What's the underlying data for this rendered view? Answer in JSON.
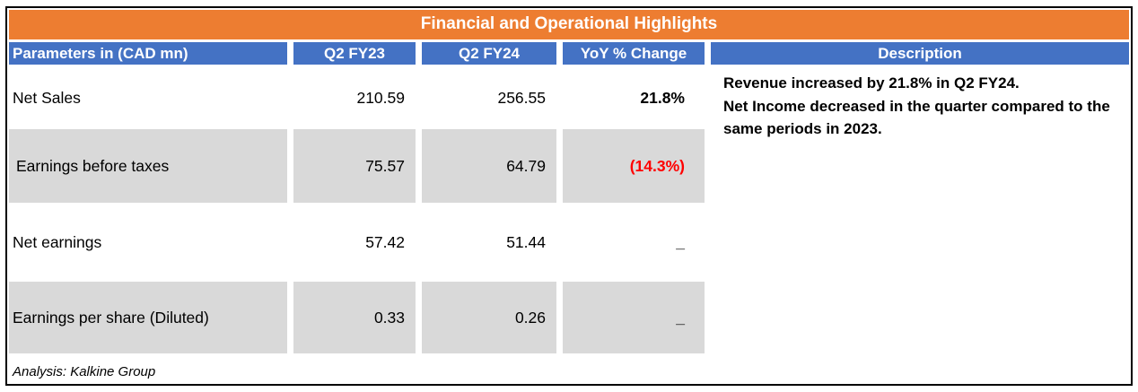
{
  "title": "Financial and Operational Highlights",
  "columns": {
    "parameters": "Parameters in (CAD mn)",
    "q2fy23": "Q2 FY23",
    "q2fy24": "Q2 FY24",
    "yoy": "YoY % Change",
    "description": "Description"
  },
  "rows": [
    {
      "param": "Net Sales",
      "q2fy23": "210.59",
      "q2fy24": "256.55",
      "yoy": "21.8%"
    },
    {
      "param": "Earnings before taxes",
      "q2fy23": "75.57",
      "q2fy24": "64.79",
      "yoy": "(14.3%)"
    },
    {
      "param": "Net earnings",
      "q2fy23": "57.42",
      "q2fy24": "51.44",
      "yoy": "_"
    },
    {
      "param": "Earnings per share (Diluted)",
      "q2fy23": "0.33",
      "q2fy24": "0.26",
      "yoy": "_"
    }
  ],
  "description": {
    "line1": "Revenue increased  by 21.8% in Q2 FY24.",
    "line2": "Net Income decreased in the quarter  compared to the same periods in 2023."
  },
  "footer": "Analysis: Kalkine Group",
  "colors": {
    "title_bg": "#ED7D31",
    "header_bg": "#4472C4",
    "shaded_row": "#D9D9D9",
    "negative_text": "#FF0000"
  }
}
